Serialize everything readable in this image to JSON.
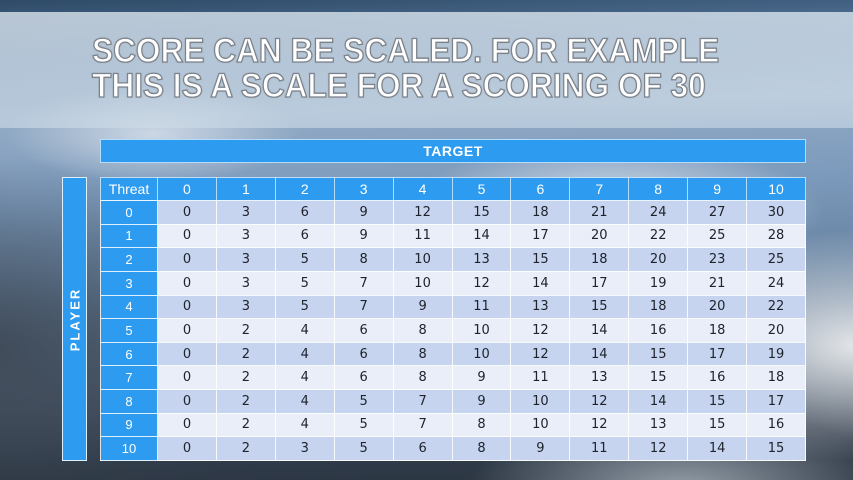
{
  "slide": {
    "title_line1": "SCORE CAN BE SCALED. FOR EXAMPLE",
    "title_line2": "THIS IS A SCALE FOR A SCORING OF 30"
  },
  "table": {
    "target_label": "TARGET",
    "player_label": "PLAYER",
    "corner_label": "Threat",
    "column_headers": [
      "0",
      "1",
      "2",
      "3",
      "4",
      "5",
      "6",
      "7",
      "8",
      "9",
      "10"
    ],
    "row_headers": [
      "0",
      "1",
      "2",
      "3",
      "4",
      "5",
      "6",
      "7",
      "8",
      "9",
      "10"
    ],
    "rows": [
      [
        0,
        3,
        6,
        9,
        12,
        15,
        18,
        21,
        24,
        27,
        30
      ],
      [
        0,
        3,
        6,
        9,
        11,
        14,
        17,
        20,
        22,
        25,
        28
      ],
      [
        0,
        3,
        5,
        8,
        10,
        13,
        15,
        18,
        20,
        23,
        25
      ],
      [
        0,
        3,
        5,
        7,
        10,
        12,
        14,
        17,
        19,
        21,
        24
      ],
      [
        0,
        3,
        5,
        7,
        9,
        11,
        13,
        15,
        18,
        20,
        22
      ],
      [
        0,
        2,
        4,
        6,
        8,
        10,
        12,
        14,
        16,
        18,
        20
      ],
      [
        0,
        2,
        4,
        6,
        8,
        10,
        12,
        14,
        15,
        17,
        19
      ],
      [
        0,
        2,
        4,
        6,
        8,
        9,
        11,
        13,
        15,
        16,
        18
      ],
      [
        0,
        2,
        4,
        5,
        7,
        9,
        10,
        12,
        14,
        15,
        17
      ],
      [
        0,
        2,
        4,
        5,
        7,
        8,
        10,
        12,
        13,
        15,
        16
      ],
      [
        0,
        2,
        3,
        5,
        6,
        8,
        9,
        11,
        12,
        14,
        15
      ]
    ]
  },
  "chart_data": {
    "type": "table",
    "title": "Score can be scaled. For example this is a scale for a scoring of 30",
    "column_axis_label": "TARGET",
    "row_axis_label": "PLAYER",
    "corner_label": "Threat",
    "columns": [
      "0",
      "1",
      "2",
      "3",
      "4",
      "5",
      "6",
      "7",
      "8",
      "9",
      "10"
    ],
    "row_labels": [
      "0",
      "1",
      "2",
      "3",
      "4",
      "5",
      "6",
      "7",
      "8",
      "9",
      "10"
    ],
    "values": [
      [
        0,
        3,
        6,
        9,
        12,
        15,
        18,
        21,
        24,
        27,
        30
      ],
      [
        0,
        3,
        6,
        9,
        11,
        14,
        17,
        20,
        22,
        25,
        28
      ],
      [
        0,
        3,
        5,
        8,
        10,
        13,
        15,
        18,
        20,
        23,
        25
      ],
      [
        0,
        3,
        5,
        7,
        10,
        12,
        14,
        17,
        19,
        21,
        24
      ],
      [
        0,
        3,
        5,
        7,
        9,
        11,
        13,
        15,
        18,
        20,
        22
      ],
      [
        0,
        2,
        4,
        6,
        8,
        10,
        12,
        14,
        16,
        18,
        20
      ],
      [
        0,
        2,
        4,
        6,
        8,
        10,
        12,
        14,
        15,
        17,
        19
      ],
      [
        0,
        2,
        4,
        6,
        8,
        9,
        11,
        13,
        15,
        16,
        18
      ],
      [
        0,
        2,
        4,
        5,
        7,
        9,
        10,
        12,
        14,
        15,
        17
      ],
      [
        0,
        2,
        4,
        5,
        7,
        8,
        10,
        12,
        13,
        15,
        16
      ],
      [
        0,
        2,
        3,
        5,
        6,
        8,
        9,
        11,
        12,
        14,
        15
      ]
    ]
  },
  "colors": {
    "header_blue": "#2d9bf0",
    "row_dark": "#c7d4ef",
    "row_light": "#e9eef9",
    "cell_text": "#1d222b"
  }
}
